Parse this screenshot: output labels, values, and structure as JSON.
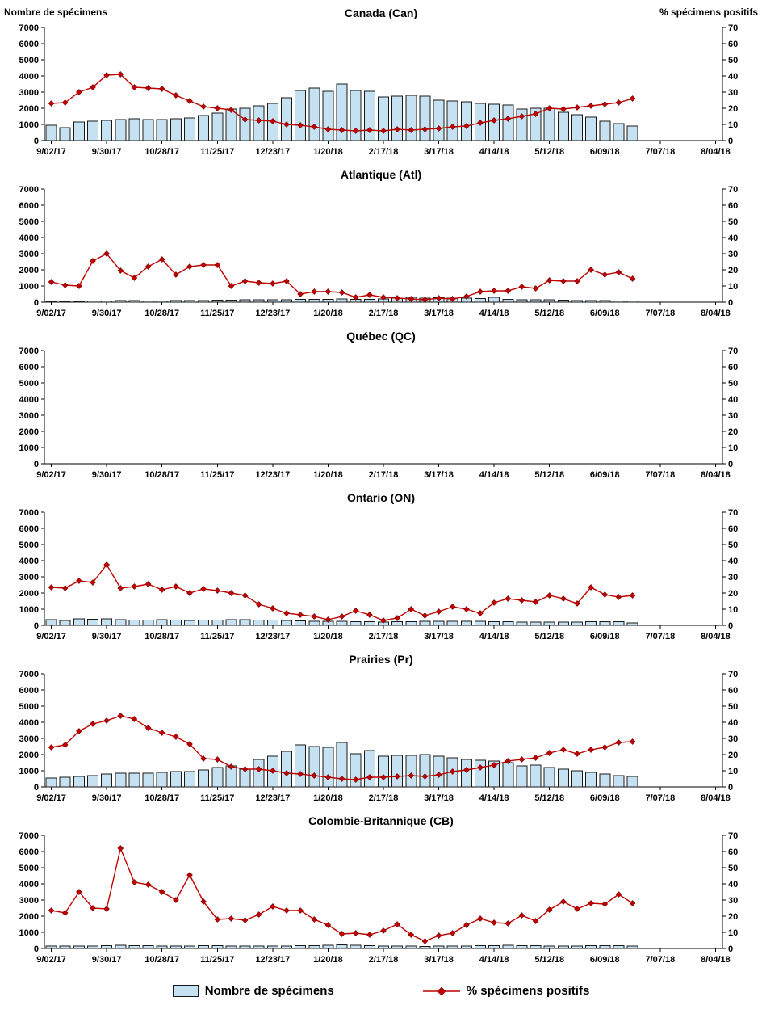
{
  "header": {
    "left_axis_title": "Nombre de spécimens",
    "right_axis_title": "% spécimens positifs"
  },
  "legend": {
    "bar_label": "Nombre de spécimens",
    "line_label": "% spécimens positifs"
  },
  "colors": {
    "bar_fill": "#C6E2F2",
    "bar_border": "#1A1A1A",
    "line": "#C00000"
  },
  "axes": {
    "left_ticks": [
      0,
      1000,
      2000,
      3000,
      4000,
      5000,
      6000,
      7000
    ],
    "right_ticks": [
      0,
      10,
      20,
      30,
      40,
      50,
      60,
      70
    ],
    "x_tick_labels": [
      "9/02/17",
      "9/30/17",
      "10/28/17",
      "11/25/17",
      "12/23/17",
      "1/20/18",
      "2/17/18",
      "3/17/18",
      "4/14/18",
      "5/12/18",
      "6/09/18",
      "7/07/18",
      "8/04/18"
    ]
  },
  "chart_data": [
    {
      "type": "bar+line",
      "title": "Canada (Can)",
      "ylim_left": [
        0,
        7000
      ],
      "ylim_right": [
        0,
        70
      ],
      "x_unit": "week",
      "series": [
        {
          "name": "Nombre de spécimens",
          "type": "bar",
          "axis": "left",
          "values": [
            950,
            800,
            1150,
            1200,
            1250,
            1300,
            1350,
            1300,
            1300,
            1350,
            1400,
            1550,
            1700,
            1950,
            2000,
            2150,
            2300,
            2650,
            3100,
            3250,
            3050,
            3500,
            3100,
            3050,
            2700,
            2750,
            2800,
            2750,
            2500,
            2450,
            2400,
            2300,
            2250,
            2200,
            1950,
            2000,
            2000,
            1750,
            1600,
            1450,
            1200,
            1050,
            900
          ]
        },
        {
          "name": "% spécimens positifs",
          "type": "line",
          "axis": "right",
          "values": [
            23,
            23.5,
            30,
            33,
            40.5,
            41,
            33,
            32.5,
            32,
            28,
            24.5,
            21,
            20,
            19,
            13,
            12.5,
            12,
            10,
            9.5,
            8.5,
            7,
            6.5,
            6,
            6.5,
            6,
            7,
            6.5,
            7,
            7.5,
            8.5,
            9,
            11,
            12.5,
            13.5,
            15,
            16.5,
            20,
            19.5,
            20.5,
            21.5,
            22.5,
            23.5,
            26
          ]
        }
      ]
    },
    {
      "type": "bar+line",
      "title": "Atlantique (Atl)",
      "ylim_left": [
        0,
        7000
      ],
      "ylim_right": [
        0,
        70
      ],
      "x_unit": "week",
      "series": [
        {
          "name": "Nombre de spécimens",
          "type": "bar",
          "axis": "left",
          "values": [
            60,
            50,
            60,
            70,
            80,
            90,
            90,
            80,
            80,
            90,
            100,
            110,
            120,
            130,
            140,
            150,
            150,
            160,
            170,
            180,
            170,
            200,
            180,
            180,
            200,
            250,
            300,
            250,
            280,
            260,
            240,
            220,
            300,
            180,
            160,
            150,
            140,
            120,
            110,
            100,
            90,
            80,
            70
          ]
        },
        {
          "name": "% spécimens positifs",
          "type": "line",
          "axis": "right",
          "values": [
            12.5,
            10.5,
            10,
            25.5,
            30,
            19.5,
            15,
            22,
            26.5,
            17,
            22,
            23,
            23,
            10,
            13,
            12,
            11.5,
            13,
            5,
            6.5,
            6.5,
            6,
            3,
            4.5,
            3,
            2.5,
            2,
            1.5,
            2.5,
            2,
            3.5,
            6.5,
            7,
            7,
            9.5,
            8.5,
            13.5,
            13,
            13,
            20,
            17,
            18.5,
            14.5
          ]
        }
      ]
    },
    {
      "type": "bar+line",
      "title": "Québec (QC)",
      "ylim_left": [
        0,
        7000
      ],
      "ylim_right": [
        0,
        70
      ],
      "x_unit": "week",
      "series": [
        {
          "name": "Nombre de spécimens",
          "type": "bar",
          "axis": "left",
          "values": []
        },
        {
          "name": "% spécimens positifs",
          "type": "line",
          "axis": "right",
          "values": []
        }
      ]
    },
    {
      "type": "bar+line",
      "title": "Ontario (ON)",
      "ylim_left": [
        0,
        7000
      ],
      "ylim_right": [
        0,
        70
      ],
      "x_unit": "week",
      "series": [
        {
          "name": "Nombre de spécimens",
          "type": "bar",
          "axis": "left",
          "values": [
            350,
            300,
            400,
            380,
            400,
            350,
            330,
            320,
            350,
            330,
            300,
            320,
            330,
            350,
            340,
            330,
            320,
            300,
            280,
            260,
            250,
            240,
            230,
            220,
            210,
            220,
            230,
            240,
            250,
            260,
            250,
            240,
            230,
            220,
            210,
            200,
            200,
            200,
            210,
            220,
            230,
            220,
            150
          ]
        },
        {
          "name": "% spécimens positifs",
          "type": "line",
          "axis": "right",
          "values": [
            23.5,
            23,
            27.5,
            26.5,
            37.5,
            23,
            24,
            25.5,
            22,
            24,
            20,
            22.5,
            21.5,
            20,
            18.5,
            13,
            10.5,
            7.5,
            6.5,
            5.5,
            3.5,
            5.5,
            9,
            6.5,
            3,
            4.5,
            10,
            6,
            8.5,
            11.5,
            10,
            7.5,
            14,
            16.5,
            15.5,
            14.5,
            18.5,
            16.5,
            13.5,
            23.5,
            19,
            17.5,
            18.5
          ]
        }
      ]
    },
    {
      "type": "bar+line",
      "title": "Prairies (Pr)",
      "ylim_left": [
        0,
        7000
      ],
      "ylim_right": [
        0,
        70
      ],
      "x_unit": "week",
      "series": [
        {
          "name": "Nombre de spécimens",
          "type": "bar",
          "axis": "left",
          "values": [
            550,
            600,
            650,
            700,
            800,
            850,
            850,
            850,
            900,
            950,
            950,
            1050,
            1200,
            1300,
            1100,
            1700,
            1900,
            2200,
            2600,
            2500,
            2450,
            2750,
            2050,
            2250,
            1900,
            1950,
            1950,
            2000,
            1900,
            1800,
            1700,
            1650,
            1600,
            1500,
            1300,
            1350,
            1200,
            1100,
            1000,
            900,
            800,
            700,
            650
          ]
        },
        {
          "name": "% spécimens positifs",
          "type": "line",
          "axis": "right",
          "values": [
            24.5,
            26,
            34.5,
            39,
            41,
            44,
            42,
            36.5,
            33.5,
            31,
            26.5,
            17.5,
            17,
            12.5,
            11,
            11,
            10,
            8.5,
            8,
            7,
            6,
            5,
            4.5,
            6,
            6,
            6.5,
            7,
            6.5,
            7.5,
            9.5,
            10.5,
            12,
            13.5,
            16,
            17,
            18,
            21,
            23,
            20.5,
            23,
            24.5,
            27.5,
            28
          ]
        }
      ]
    },
    {
      "type": "bar+line",
      "title": "Colombie-Britannique (CB)",
      "ylim_left": [
        0,
        7000
      ],
      "ylim_right": [
        0,
        70
      ],
      "x_unit": "week",
      "series": [
        {
          "name": "Nombre de spécimens",
          "type": "bar",
          "axis": "left",
          "values": [
            150,
            140,
            150,
            160,
            170,
            200,
            180,
            170,
            160,
            150,
            160,
            180,
            170,
            160,
            150,
            140,
            150,
            160,
            170,
            180,
            200,
            220,
            200,
            180,
            160,
            150,
            140,
            130,
            140,
            150,
            160,
            170,
            180,
            190,
            180,
            170,
            160,
            150,
            160,
            170,
            180,
            170,
            160
          ]
        },
        {
          "name": "% spécimens positifs",
          "type": "line",
          "axis": "right",
          "values": [
            23.5,
            22,
            35,
            25,
            24.5,
            62,
            41,
            39.5,
            35,
            30,
            45.5,
            29,
            18,
            18.5,
            17.5,
            21,
            26,
            23.5,
            23.5,
            18,
            14.5,
            9,
            9.5,
            8.5,
            11,
            15,
            8.5,
            4.5,
            8,
            9.5,
            14.5,
            18.5,
            16,
            15.5,
            20.5,
            17,
            24,
            29,
            24.5,
            28,
            27.5,
            33.5,
            28
          ]
        }
      ]
    }
  ]
}
